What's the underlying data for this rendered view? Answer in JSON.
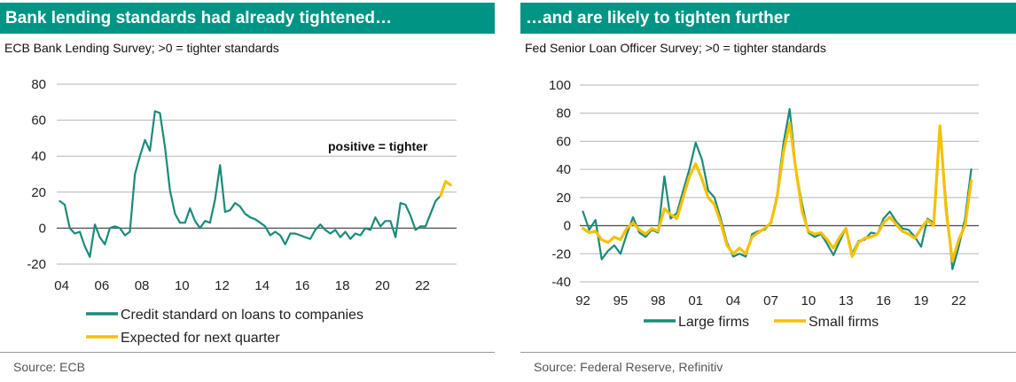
{
  "chart_data": [
    {
      "type": "line",
      "title": "Bank lending standards had already tightened…",
      "subtitle": "ECB Bank Lending Survey; >0 = tighter standards",
      "source": "Source: ECB",
      "annotation": "positive = tighter",
      "xlabel": "",
      "ylabel": "",
      "xlim": [
        2003.75,
        2023.7
      ],
      "ylim": [
        -20,
        80
      ],
      "grid": true,
      "legend_position": "bottom",
      "x_ticks": [
        {
          "value": 2004,
          "label": "04"
        },
        {
          "value": 2006,
          "label": "06"
        },
        {
          "value": 2008,
          "label": "08"
        },
        {
          "value": 2010,
          "label": "10"
        },
        {
          "value": 2012,
          "label": "12"
        },
        {
          "value": 2014,
          "label": "14"
        },
        {
          "value": 2016,
          "label": "16"
        },
        {
          "value": 2018,
          "label": "18"
        },
        {
          "value": 2020,
          "label": "20"
        },
        {
          "value": 2022,
          "label": "22"
        }
      ],
      "y_ticks": [
        {
          "value": -20,
          "label": "-20"
        },
        {
          "value": 0,
          "label": "0"
        },
        {
          "value": 20,
          "label": "20"
        },
        {
          "value": 40,
          "label": "40"
        },
        {
          "value": 60,
          "label": "60"
        },
        {
          "value": 80,
          "label": "80"
        }
      ],
      "series": [
        {
          "name": "Credit standard on loans to companies",
          "color": "#1b8a7a",
          "x": [
            2003.9,
            2004.15,
            2004.4,
            2004.65,
            2004.9,
            2005.15,
            2005.4,
            2005.65,
            2005.9,
            2006.15,
            2006.4,
            2006.65,
            2006.9,
            2007.15,
            2007.4,
            2007.65,
            2007.9,
            2008.15,
            2008.4,
            2008.65,
            2008.9,
            2009.15,
            2009.4,
            2009.65,
            2009.9,
            2010.15,
            2010.4,
            2010.65,
            2010.9,
            2011.15,
            2011.4,
            2011.65,
            2011.9,
            2012.15,
            2012.4,
            2012.65,
            2012.9,
            2013.15,
            2013.4,
            2013.65,
            2013.9,
            2014.15,
            2014.4,
            2014.65,
            2014.9,
            2015.15,
            2015.4,
            2015.65,
            2015.9,
            2016.15,
            2016.4,
            2016.65,
            2016.9,
            2017.15,
            2017.4,
            2017.65,
            2017.9,
            2018.15,
            2018.4,
            2018.65,
            2018.9,
            2019.15,
            2019.4,
            2019.65,
            2019.9,
            2020.15,
            2020.4,
            2020.65,
            2020.9,
            2021.15,
            2021.4,
            2021.65,
            2021.9,
            2022.15,
            2022.4,
            2022.65,
            2022.9,
            2023.15
          ],
          "values": [
            15,
            13,
            0,
            -3,
            -2,
            -10,
            -16,
            2,
            -5,
            -9,
            0,
            1,
            0,
            -4,
            -2,
            30,
            40,
            49,
            43,
            65,
            64,
            45,
            21,
            8,
            3,
            3,
            11,
            4,
            0,
            4,
            3,
            16,
            35,
            9,
            10,
            14,
            12,
            8,
            6,
            5,
            3,
            1,
            -4,
            -2,
            -4,
            -9,
            -3,
            -3,
            -4,
            -5,
            -6,
            -1,
            2,
            -1,
            -3,
            -1,
            -5,
            -2,
            -6,
            -3,
            -4,
            0,
            -1,
            6,
            1,
            4,
            4,
            -5,
            14,
            13,
            7,
            -1,
            1,
            1,
            8,
            15,
            18,
            26
          ]
        },
        {
          "name": "Expected for next quarter",
          "color": "#f5c100",
          "x": [
            2022.9,
            2023.15,
            2023.4
          ],
          "values": [
            18,
            26,
            24
          ]
        }
      ]
    },
    {
      "type": "line",
      "title": "…and are likely to tighten further",
      "subtitle": "Fed Senior Loan Officer Survey; >0 = tighter standards",
      "source": "Source:  Federal Reserve, Refinitiv",
      "xlabel": "",
      "ylabel": "",
      "xlim": [
        1991.75,
        2023.6
      ],
      "ylim": [
        -40,
        100
      ],
      "grid": true,
      "legend_position": "bottom",
      "x_ticks": [
        {
          "value": 1992,
          "label": "92"
        },
        {
          "value": 1995,
          "label": "95"
        },
        {
          "value": 1998,
          "label": "98"
        },
        {
          "value": 2001,
          "label": "01"
        },
        {
          "value": 2004,
          "label": "04"
        },
        {
          "value": 2007,
          "label": "07"
        },
        {
          "value": 2010,
          "label": "10"
        },
        {
          "value": 2013,
          "label": "13"
        },
        {
          "value": 2016,
          "label": "16"
        },
        {
          "value": 2019,
          "label": "19"
        },
        {
          "value": 2022,
          "label": "22"
        }
      ],
      "y_ticks": [
        {
          "value": -40,
          "label": "-40"
        },
        {
          "value": -20,
          "label": "-20"
        },
        {
          "value": 0,
          "label": "0"
        },
        {
          "value": 20,
          "label": "20"
        },
        {
          "value": 40,
          "label": "40"
        },
        {
          "value": 60,
          "label": "60"
        },
        {
          "value": 80,
          "label": "80"
        },
        {
          "value": 100,
          "label": "100"
        }
      ],
      "series": [
        {
          "name": "Large firms",
          "color": "#1b8a7a",
          "x": [
            1992.0,
            1992.5,
            1993.0,
            1993.5,
            1994.0,
            1994.5,
            1995.0,
            1995.5,
            1996.0,
            1996.5,
            1997.0,
            1997.5,
            1998.0,
            1998.5,
            1999.0,
            1999.5,
            2000.0,
            2000.5,
            2001.0,
            2001.5,
            2002.0,
            2002.5,
            2003.0,
            2003.5,
            2004.0,
            2004.5,
            2005.0,
            2005.5,
            2006.0,
            2006.5,
            2007.0,
            2007.5,
            2008.0,
            2008.5,
            2009.0,
            2009.5,
            2010.0,
            2010.5,
            2011.0,
            2011.5,
            2012.0,
            2012.5,
            2013.0,
            2013.5,
            2014.0,
            2014.5,
            2015.0,
            2015.5,
            2016.0,
            2016.5,
            2017.0,
            2017.5,
            2018.0,
            2018.5,
            2019.0,
            2019.5,
            2020.0,
            2020.5,
            2021.0,
            2021.5,
            2022.0,
            2022.5,
            2023.0
          ],
          "values": [
            10,
            -3,
            4,
            -24,
            -18,
            -14,
            -20,
            -6,
            6,
            -5,
            -8,
            -3,
            -5,
            35,
            5,
            9,
            25,
            40,
            59,
            47,
            25,
            20,
            5,
            -12,
            -22,
            -20,
            -22,
            -6,
            -4,
            -3,
            2,
            22,
            58,
            83,
            40,
            15,
            -5,
            -8,
            -6,
            -13,
            -21,
            -11,
            -2,
            -20,
            -11,
            -10,
            -5,
            -6,
            5,
            10,
            3,
            -2,
            -3,
            -8,
            -15,
            5,
            2,
            70,
            15,
            -31,
            -15,
            5,
            40
          ]
        },
        {
          "name": "Small firms",
          "color": "#f5c100",
          "x": [
            1992.0,
            1992.5,
            1993.0,
            1993.5,
            1994.0,
            1994.5,
            1995.0,
            1995.5,
            1996.0,
            1996.5,
            1997.0,
            1997.5,
            1998.0,
            1998.5,
            1999.0,
            1999.5,
            2000.0,
            2000.5,
            2001.0,
            2001.5,
            2002.0,
            2002.5,
            2003.0,
            2003.5,
            2004.0,
            2004.5,
            2005.0,
            2005.5,
            2006.0,
            2006.5,
            2007.0,
            2007.5,
            2008.0,
            2008.5,
            2009.0,
            2009.5,
            2010.0,
            2010.5,
            2011.0,
            2011.5,
            2012.0,
            2012.5,
            2013.0,
            2013.5,
            2014.0,
            2014.5,
            2015.0,
            2015.5,
            2016.0,
            2016.5,
            2017.0,
            2017.5,
            2018.0,
            2018.5,
            2019.0,
            2019.5,
            2020.0,
            2020.5,
            2021.0,
            2021.5,
            2022.0,
            2022.5,
            2023.0
          ],
          "values": [
            -2,
            -5,
            -4,
            -10,
            -12,
            -8,
            -10,
            -2,
            2,
            -3,
            -6,
            -2,
            -4,
            12,
            8,
            5,
            20,
            35,
            44,
            33,
            20,
            15,
            2,
            -14,
            -20,
            -16,
            -20,
            -8,
            -5,
            -2,
            2,
            20,
            52,
            73,
            40,
            10,
            -4,
            -6,
            -5,
            -10,
            -16,
            -8,
            -2,
            -22,
            -12,
            -9,
            -8,
            -6,
            2,
            6,
            1,
            -4,
            -6,
            -9,
            -2,
            4,
            0,
            71,
            10,
            -25,
            -10,
            0,
            32
          ]
        }
      ]
    }
  ]
}
